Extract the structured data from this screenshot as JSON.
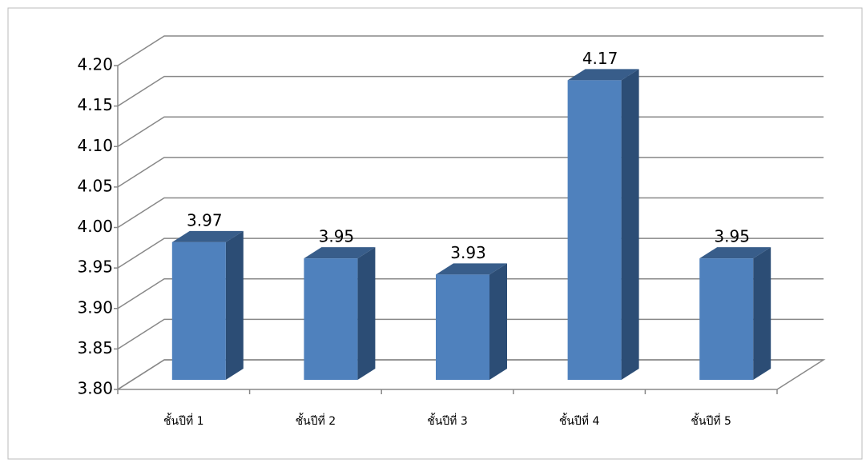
{
  "chart_data": {
    "type": "bar3d",
    "categories": [
      "ชั้นปีที่ 1",
      "ชั้นปีที่ 2",
      "ชั้นปีที่ 3",
      "ชั้นปีที่ 4",
      "ชั้นปีที่ 5"
    ],
    "values": [
      3.97,
      3.95,
      3.93,
      4.17,
      3.95
    ],
    "color": "#4f81bd",
    "ylim": [
      3.8,
      4.2
    ],
    "yticks": [
      {
        "value": 3.8,
        "label": "3.80"
      },
      {
        "value": 3.85,
        "label": "3.85"
      },
      {
        "value": 3.9,
        "label": "3.90"
      },
      {
        "value": 3.95,
        "label": "3.95"
      },
      {
        "value": 4.0,
        "label": "4.00"
      },
      {
        "value": 4.05,
        "label": "4.05"
      },
      {
        "value": 4.1,
        "label": "4.10"
      },
      {
        "value": 4.15,
        "label": "4.15"
      },
      {
        "value": 4.2,
        "label": "4.20"
      }
    ],
    "grid": true
  }
}
